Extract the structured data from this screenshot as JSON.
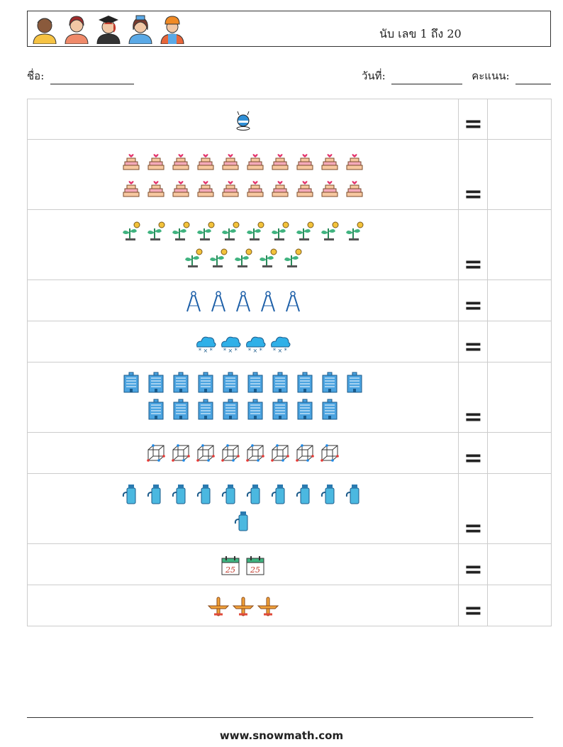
{
  "header": {
    "title": "นับ เลข 1 ถึง 20",
    "avatars": [
      "avatar-man",
      "avatar-woman",
      "avatar-graduate",
      "avatar-nurse",
      "avatar-worker"
    ]
  },
  "meta": {
    "name_label": "ชื่อ:",
    "date_label": "วันที่:",
    "score_label": "คะแนน:"
  },
  "equals_sign": "=",
  "rows": [
    {
      "icon": "robot-icon",
      "count": 1
    },
    {
      "icon": "cake-icon",
      "count": 20
    },
    {
      "icon": "plant-icon",
      "count": 15
    },
    {
      "icon": "compass-icon",
      "count": 5
    },
    {
      "icon": "snow-cloud-icon",
      "count": 4
    },
    {
      "icon": "building-icon",
      "count": 18
    },
    {
      "icon": "cube-icon",
      "count": 8
    },
    {
      "icon": "thermos-icon",
      "count": 11
    },
    {
      "icon": "calendar-icon",
      "count": 2,
      "calendar_day": "25"
    },
    {
      "icon": "airplane-icon",
      "count": 3
    }
  ],
  "footer": {
    "url": "www.snowmath.com"
  }
}
